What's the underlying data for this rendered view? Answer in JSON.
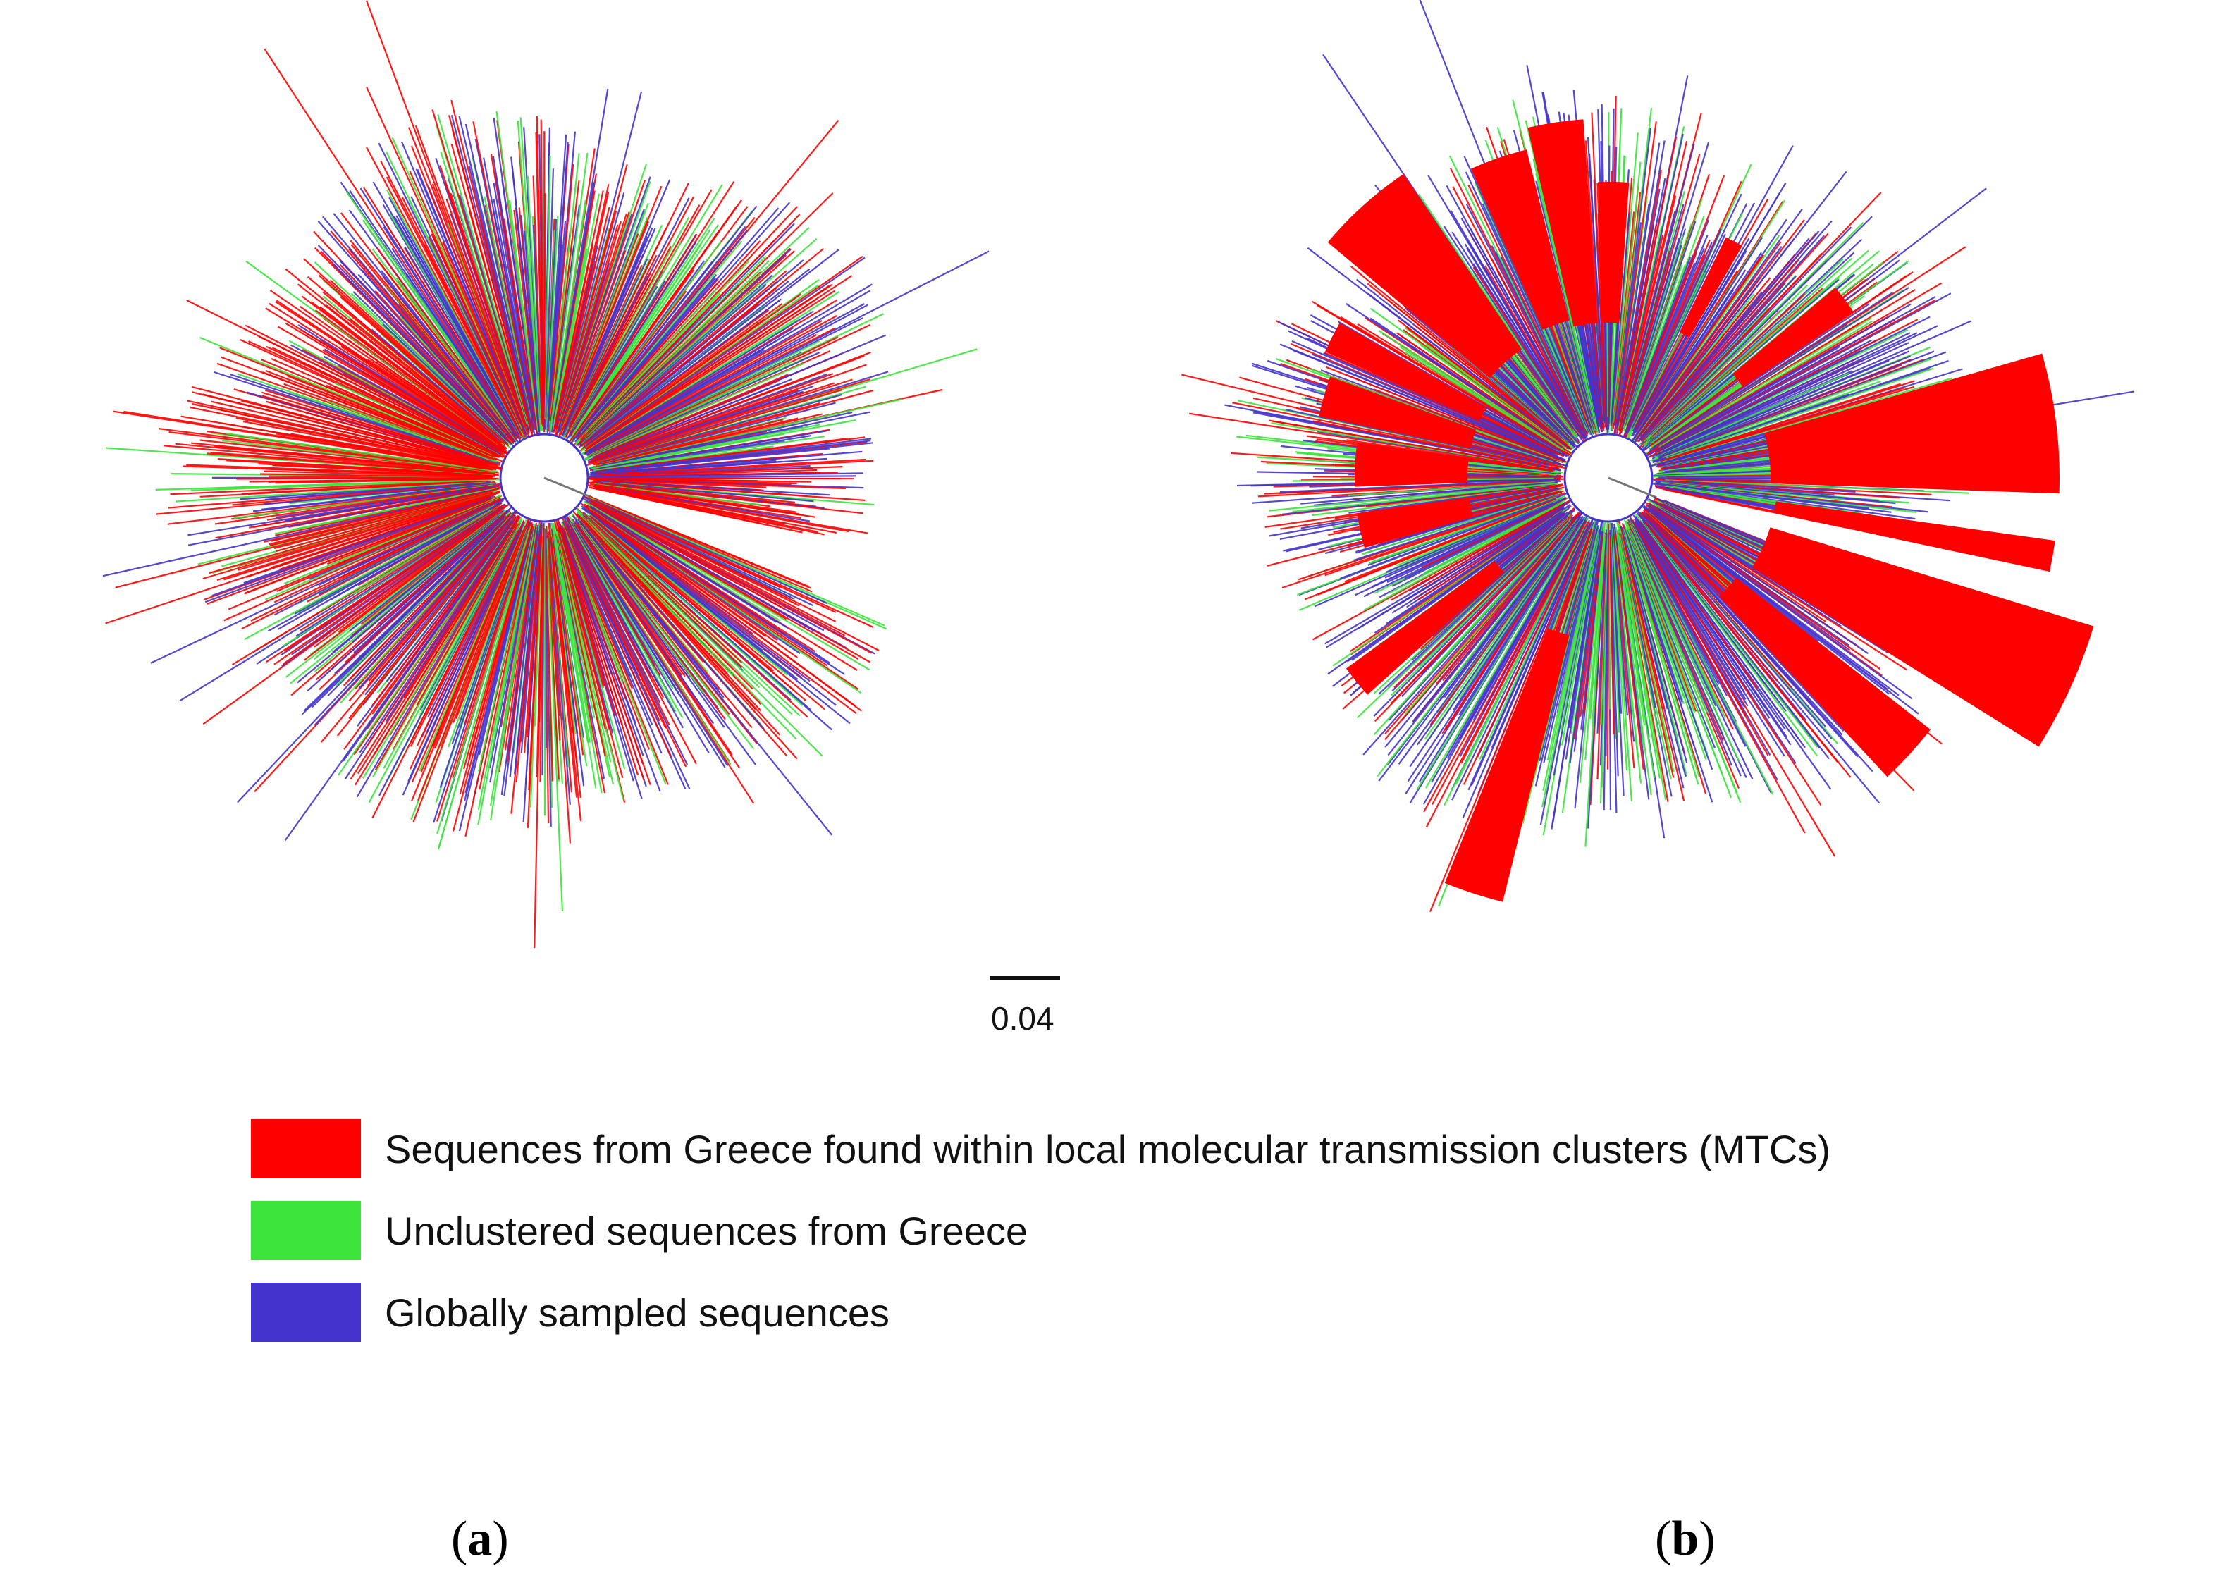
{
  "colors": {
    "clustered": "#ff0000",
    "unclustered": "#3ce43c",
    "global": "#4433cc"
  },
  "scale_bar": {
    "label": "0.04"
  },
  "legend": [
    {
      "key": "clustered",
      "label": "Sequences from Greece found within local molecular transmission clusters (MTCs)",
      "color": "#ff0000"
    },
    {
      "key": "unclustered",
      "label": "Unclustered sequences from Greece",
      "color": "#3ce43c"
    },
    {
      "key": "global",
      "label": "Globally sampled sequences",
      "color": "#4433cc"
    }
  ],
  "panels": [
    {
      "id": "a",
      "letter": "a",
      "collapsed_clusters": false
    },
    {
      "id": "b",
      "letter": "b",
      "collapsed_clusters": true
    }
  ]
}
